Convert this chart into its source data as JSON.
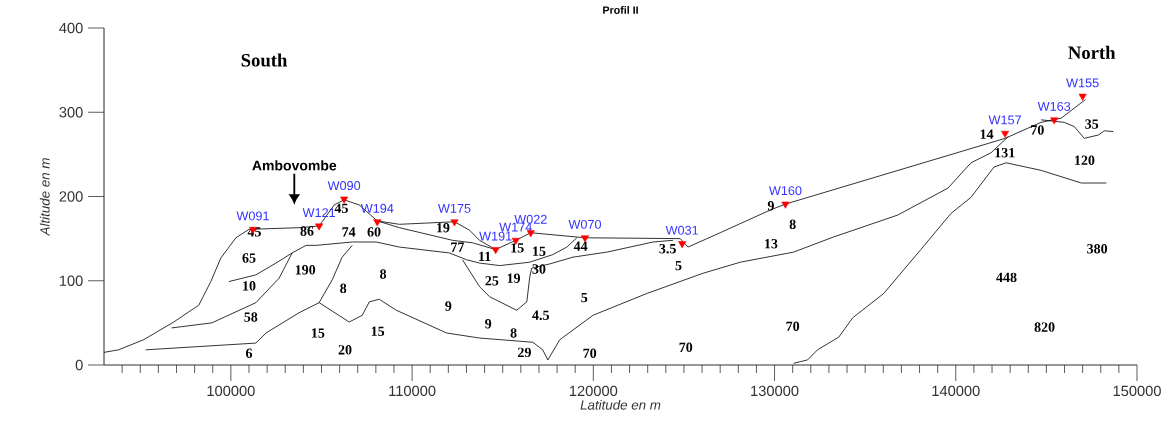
{
  "chart_data": {
    "type": "line",
    "title": "Profil II",
    "xlabel": "Latitude en m",
    "ylabel": "Altitude en m",
    "xlim": [
      93000,
      150000
    ],
    "xticks": [
      {
        "value": 94000,
        "label": null
      },
      {
        "value": 95000,
        "label": null
      },
      {
        "value": 96000,
        "label": null
      },
      {
        "value": 97000,
        "label": null
      },
      {
        "value": 98000,
        "label": null
      },
      {
        "value": 99000,
        "label": null
      },
      100000,
      {
        "value": 101000,
        "label": null
      },
      {
        "value": 102000,
        "label": null
      },
      {
        "value": 103000,
        "label": null
      },
      {
        "value": 104000,
        "label": null
      },
      {
        "value": 105000,
        "label": null
      },
      {
        "value": 106000,
        "label": null
      },
      {
        "value": 107000,
        "label": null
      },
      {
        "value": 108000,
        "label": null
      },
      {
        "value": 109000,
        "label": null
      },
      110000,
      {
        "value": 111000,
        "label": null
      },
      {
        "value": 112000,
        "label": null
      },
      {
        "value": 113000,
        "label": null
      },
      {
        "value": 114000,
        "label": null
      },
      {
        "value": 115000,
        "label": null
      },
      {
        "value": 116000,
        "label": null
      },
      {
        "value": 117000,
        "label": null
      },
      {
        "value": 118000,
        "label": null
      },
      {
        "value": 119000,
        "label": null
      },
      120000,
      {
        "value": 121000,
        "label": null
      },
      {
        "value": 122000,
        "label": null
      },
      {
        "value": 123000,
        "label": null
      },
      {
        "value": 124000,
        "label": null
      },
      {
        "value": 125000,
        "label": null
      },
      {
        "value": 126000,
        "label": null
      },
      {
        "value": 127000,
        "label": null
      },
      {
        "value": 128000,
        "label": null
      },
      {
        "value": 129000,
        "label": null
      },
      130000,
      {
        "value": 131000,
        "label": null
      },
      {
        "value": 132000,
        "label": null
      },
      {
        "value": 133000,
        "label": null
      },
      {
        "value": 134000,
        "label": null
      },
      {
        "value": 135000,
        "label": null
      },
      {
        "value": 136000,
        "label": null
      },
      {
        "value": 137000,
        "label": null
      },
      {
        "value": 138000,
        "label": null
      },
      {
        "value": 139000,
        "label": null
      },
      140000,
      {
        "value": 141000,
        "label": null
      },
      {
        "value": 142000,
        "label": null
      },
      {
        "value": 143000,
        "label": null
      },
      {
        "value": 144000,
        "label": null
      },
      {
        "value": 145000,
        "label": null
      },
      {
        "value": 146000,
        "label": null
      },
      {
        "value": 147000,
        "label": null
      },
      {
        "value": 148000,
        "label": null
      },
      {
        "value": 149000,
        "label": null
      },
      150000
    ],
    "ylim": [
      0,
      400
    ],
    "yticks": [
      0,
      100,
      200,
      300,
      400
    ],
    "grid": false,
    "series": [
      {
        "color": "#000000",
        "x": [
          93000,
          93800,
          95185,
          96846,
          98229,
          98893,
          99447,
          100277,
          100996,
          103763,
          104870,
          105700,
          106250,
          107080,
          108080,
          109300,
          112340,
          113170,
          113720,
          114610,
          115720,
          116550,
          119540,
          124790,
          125230,
          127000,
          129770,
          130600,
          142720,
          144700,
          145820,
          147150
        ],
        "values": [
          15,
          18,
          30,
          51,
          71,
          99,
          127,
          151,
          161,
          163,
          165,
          190,
          196,
          190,
          171,
          167,
          170,
          160,
          148,
          137,
          148,
          157,
          151,
          150,
          140,
          157,
          184,
          191,
          269,
          288,
          293,
          315
        ]
      },
      {
        "color": "#000000",
        "x": [
          108080,
          109300,
          112230,
          113340,
          114610
        ],
        "values": [
          171,
          163,
          148,
          145,
          137
        ]
      },
      {
        "color": "#000000",
        "x": [
          99890,
          101380,
          102490,
          103380,
          104150,
          104700,
          106700,
          108020,
          109300,
          112060,
          113000,
          113720,
          114830,
          116490,
          117760,
          118540,
          119090
        ],
        "values": [
          99,
          107,
          121,
          133,
          142,
          142,
          146,
          146,
          140,
          133,
          125,
          121,
          118,
          122,
          131,
          140,
          151
        ]
      },
      {
        "color": "#000000",
        "x": [
          112780,
          113720,
          114280,
          115770,
          116330,
          116490,
          116600,
          117600,
          118870,
          120750,
          123300,
          124400
        ],
        "values": [
          125,
          93,
          81,
          65,
          75,
          104,
          115,
          120,
          128,
          134,
          146,
          148
        ]
      },
      {
        "color": "#000000",
        "x": [
          96730,
          98950,
          101380,
          102660,
          103380
        ],
        "values": [
          44,
          50,
          74,
          103,
          133
        ]
      },
      {
        "color": "#000000",
        "x": [
          95300,
          101380,
          101940,
          103760,
          104870,
          106530,
          107250,
          107640,
          108190,
          109130,
          111900,
          113720,
          116660,
          117210,
          117490,
          118150,
          119980,
          122970,
          126070,
          128110,
          131050,
          133260,
          136800,
          139570,
          140840,
          141950,
          142890
        ],
        "values": [
          18,
          26,
          38,
          62,
          74,
          51,
          59,
          75,
          78,
          65,
          38,
          32,
          27,
          18,
          6,
          30,
          59,
          85,
          109,
          122,
          134,
          152,
          178,
          210,
          240,
          252,
          271
        ]
      },
      {
        "color": "#000000",
        "x": [
          104870,
          105590,
          106140,
          106700
        ],
        "values": [
          74,
          101,
          128,
          142
        ]
      },
      {
        "color": "#000000",
        "x": [
          131050,
          131820,
          132370,
          133540,
          134310,
          136030,
          138070,
          139740,
          140840,
          142110,
          142780,
          144710,
          146930,
          148310
        ],
        "values": [
          2,
          6,
          18,
          33,
          56,
          85,
          137,
          180,
          199,
          235,
          240,
          231,
          216,
          216
        ]
      },
      {
        "color": "#000000",
        "x": [
          144710,
          145990,
          146540,
          147090,
          147870,
          148200,
          148700
        ],
        "values": [
          291,
          288,
          283,
          269,
          273,
          278,
          277
        ]
      },
      {
        "type": "scatter",
        "marker": "triangle",
        "color": "#ff0000",
        "x": [
          101220,
          104870,
          106250,
          108080,
          112340,
          114610,
          115720,
          116550,
          119540,
          124900,
          130600,
          142720,
          145430,
          147000
        ],
        "values": [
          161,
          165,
          197,
          170,
          170,
          137,
          148,
          157,
          151,
          144,
          191,
          275,
          291,
          319
        ]
      }
    ],
    "annotations": [
      "South",
      "North",
      "Ambovombe",
      "45",
      "86",
      "45",
      "74",
      "60",
      "19",
      "77",
      "11",
      "15",
      "15",
      "44",
      "3.5",
      "9",
      "8",
      "13",
      "5",
      "65",
      "190",
      "8",
      "10",
      "8",
      "25",
      "19",
      "30",
      "58",
      "9",
      "5",
      "4.5",
      "9",
      "8",
      "15",
      "15",
      "20",
      "6",
      "29",
      "70",
      "70",
      "70",
      "14",
      "70",
      "35",
      "131",
      "120",
      "380",
      "448",
      "820",
      {
        "text": "W091",
        "x": 101220,
        "y": 161
      },
      {
        "text": "W121",
        "x": 104870,
        "y": 165
      },
      {
        "text": "W090",
        "x": 106250,
        "y": 197
      },
      {
        "text": "W194",
        "x": 108080,
        "y": 170
      },
      {
        "text": "W175",
        "x": 112340,
        "y": 170
      },
      {
        "text": "W191",
        "x": 114610,
        "y": 137
      },
      {
        "text": "W174",
        "x": 115720,
        "y": 148
      },
      {
        "text": "W022",
        "x": 116550,
        "y": 157
      },
      {
        "text": "W070",
        "x": 119540,
        "y": 151
      },
      {
        "text": "W031",
        "x": 124900,
        "y": 144
      },
      {
        "text": "W160",
        "x": 130600,
        "y": 191
      },
      {
        "text": "W157",
        "x": 142720,
        "y": 275
      },
      {
        "text": "W163",
        "x": 145430,
        "y": 291
      },
      {
        "text": "W155",
        "x": 147000,
        "y": 319
      }
    ]
  }
}
